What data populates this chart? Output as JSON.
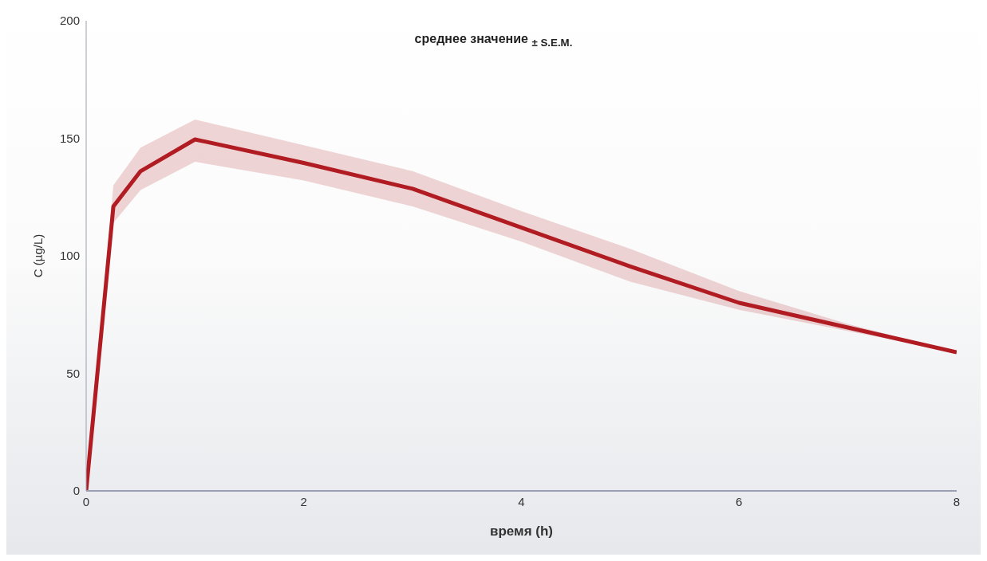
{
  "chart_data": {
    "type": "line",
    "title": "среднее значение $_{± S.E.M.}$",
    "xlabel": "время (h)",
    "ylabel": "C (µg/L)",
    "x": [
      0,
      0.25,
      0.5,
      1,
      2,
      3,
      4,
      5,
      6,
      7,
      8
    ],
    "series": [
      {
        "color": "#b01c22",
        "values": [
          0,
          121,
          136,
          149.5,
          139.5,
          128.5,
          112,
          95.5,
          80,
          69.5,
          59
        ],
        "lower": [
          0,
          114,
          128,
          140,
          132,
          121,
          106,
          89,
          77,
          68,
          59
        ],
        "upper": [
          0,
          130,
          146,
          158,
          147,
          136,
          119,
          103,
          85,
          71,
          59
        ]
      }
    ],
    "xlim": [
      0,
      8
    ],
    "xticks": [
      0,
      2,
      4,
      6,
      8
    ],
    "ylim": [
      0,
      200
    ],
    "yticks": [
      0,
      50,
      100,
      150,
      200
    ]
  }
}
